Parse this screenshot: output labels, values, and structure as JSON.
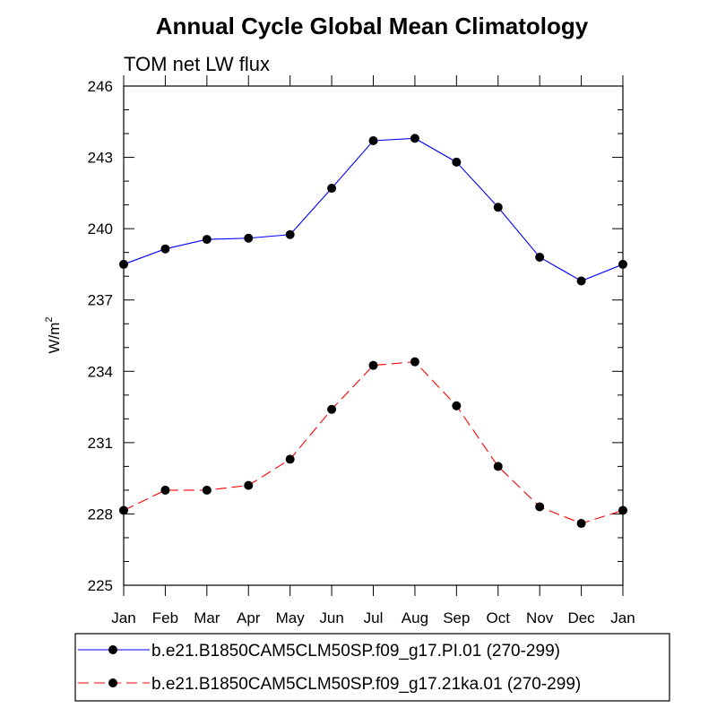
{
  "chart_data": {
    "type": "line",
    "title": "Annual Cycle Global Mean Climatology",
    "subtitle": "TOM net LW flux",
    "xlabel": "",
    "ylabel": "W/m",
    "ylabel_superscript": "2",
    "categories": [
      "Jan",
      "Feb",
      "Mar",
      "Apr",
      "May",
      "Jun",
      "Jul",
      "Aug",
      "Sep",
      "Oct",
      "Nov",
      "Dec",
      "Jan"
    ],
    "ylim": [
      225,
      246
    ],
    "yticks": [
      225,
      228,
      231,
      234,
      237,
      240,
      243,
      246
    ],
    "grid": false,
    "legend_position": "bottom",
    "series": [
      {
        "name": "b.e21.B1850CAM5CLM50SP.f09_g17.PI.01 (270-299)",
        "color": "#0000ff",
        "dash": "solid",
        "marker": "filled-circle",
        "values": [
          238.5,
          239.15,
          239.55,
          239.6,
          239.75,
          241.7,
          243.7,
          243.8,
          242.8,
          240.9,
          238.8,
          237.8,
          238.5
        ]
      },
      {
        "name": "b.e21.B1850CAM5CLM50SP.f09_g17.21ka.01 (270-299)",
        "color": "#ff0000",
        "dash": "dashed",
        "marker": "filled-circle",
        "values": [
          228.15,
          229.0,
          229.0,
          229.2,
          230.3,
          232.4,
          234.25,
          234.4,
          232.55,
          230.0,
          228.3,
          227.6,
          228.15
        ]
      }
    ]
  }
}
